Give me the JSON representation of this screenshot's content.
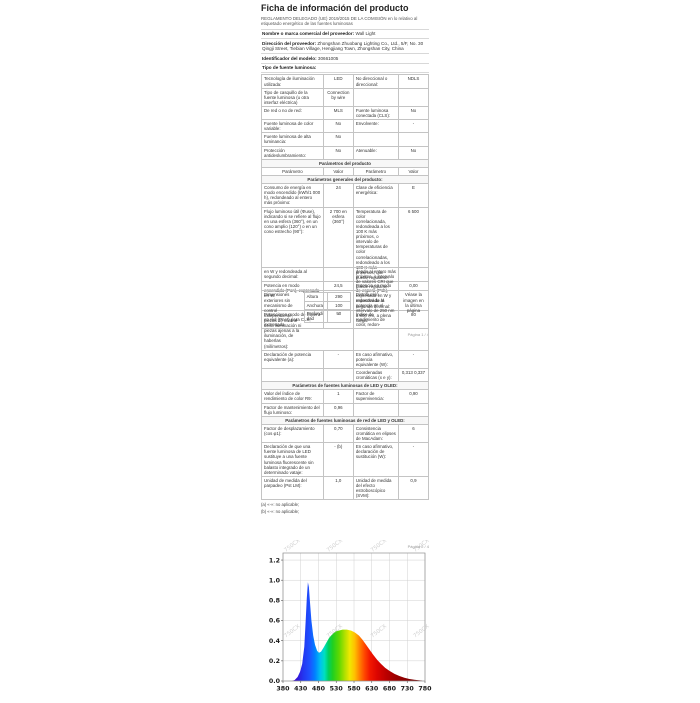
{
  "p1": {
    "title": "Ficha de información del producto",
    "regulation": "REGLAMENTO DELEGADO (UE) 2019/2015 DE LA COMISIÓN en lo relativo al etiquetado energético de las fuentes luminosas",
    "labels": {
      "supplier": "Nombre o marca comercial del proveedor:",
      "address": "Dirección del proveedor:",
      "model": "Identificador del modelo:",
      "type": "Tipo de fuente luminosa:"
    },
    "values": {
      "supplier": "Wall Light",
      "address": "Zhongshan Zhuobang Lighting Co., Ltd., 5/F, No. 30 Qingji Street, Tiebian Village, Hengjiang Town, Zhongshan City, China",
      "model": "30661005"
    },
    "info": [
      [
        "Tecnología de iluminación utilizada:",
        "LED",
        "No direccional o direccional:",
        "NDLS"
      ],
      [
        "Tipo de casquillo de la fuente luminosa (u otra interfaz eléctrica)",
        "Connection by wire",
        "",
        ""
      ],
      [
        "De red o no de red:",
        "MLS",
        "Fuente luminosa conectada (CLS):",
        "No"
      ],
      [
        "Fuente luminosa de color variable:",
        "No",
        "Envolvente:",
        "-"
      ],
      [
        "Fuente luminosa de alta luminancia:",
        "No",
        "",
        ""
      ],
      [
        "Protección antideslumbramiento:",
        "No",
        "Atenuable:",
        "No"
      ]
    ],
    "sec_product": "Parámetros del producto",
    "param_hdr": [
      "Parámetro",
      "Valor",
      "Parámetro",
      "Valor"
    ],
    "sec_general": "Parámetros generales del producto:",
    "general": [
      [
        "Consumo de energía en modo encendido (kWh/1 000 h), redondeado al entero más próximo:",
        "24",
        "Clase de eficiencia energética:",
        "E"
      ],
      [
        "Flujo luminoso útil (Φuse), indicando si se refiere al flujo en una esfera (360°), en un cono amplio (120°) o en un cono estrecho (90°):",
        "2 700 en esfera (360°)",
        "Temperatura de color correlacionada, redondeada a los 100 K más próximos, o intervalo de temperaturas de color correlacionadas, redondeado a los 100 K más próximos, que puede regularse:",
        "6 500"
      ],
      [
        "Potencia en modo encendido (Pon), expresada en W:",
        "24,5",
        "Potencia en modo de espera (Psb), expresada en W y redondeada al segundo decimal:",
        "0,00"
      ],
      [
        "Potencia en modo de espera en red (Pnet) para CLS, expresada",
        "-",
        "Índice de rendimiento de color, redon-",
        "80"
      ]
    ],
    "footer": "Página 1 / 4"
  },
  "p2": {
    "top": [
      [
        "en W y redondeada al segundo decimal:",
        "",
        "deado al entero más próximo, o intervalo de valores CRI que puede regularse:",
        ""
      ]
    ],
    "dims_label": "Dimensiones exteriores sin mecanismo de control independiente, piezas de control de la iluminación ni piezas ajenas a la iluminación, de haberlas (milímetros):",
    "dims": [
      [
        "Altura",
        "290"
      ],
      [
        "Anchura",
        "100"
      ],
      [
        "Profundidad",
        "90"
      ]
    ],
    "spd_label": "Distribución espectral de la potencia en el intervalo de 250 nm a 800 nm, a plena carga:",
    "spd_value": "Véase la imagen en la última página",
    "rows_a": [
      [
        "Declaración de potencia equivalente (a):",
        "-",
        "En caso afirmativo, potencia equivalente (W):",
        "-"
      ],
      [
        "",
        "",
        "Coordenadas cromáticas (x e y):",
        "0,313  0,337"
      ]
    ],
    "sec_led": "Parámetros de fuentes luminosas de LED y OLED:",
    "rows_led": [
      [
        "Valor del índice de rendimiento de color R9:",
        "1",
        "Factor de supervivencia:",
        "0,90"
      ],
      [
        "Factor de mantenimiento del flujo luminoso:",
        "0,96",
        "",
        ""
      ]
    ],
    "sec_mains": "Parámetros de fuentes luminosas de red de LED y OLED:",
    "rows_mains": [
      [
        "Factor de desplazamiento (cos φ1):",
        "0,70",
        "Consistencia cromática en elipses de MacAdam:",
        "6"
      ],
      [
        "Declaración de que una fuente luminosa de LED sustituye a una fuente luminosa fluorescente sin balasto integrado de un determinado vataje:",
        "- (b)",
        "En caso afirmativo, declaración de sustitución (W):",
        "-"
      ],
      [
        "Unidad de medida del parpadeo (Pst LM):",
        "1,0",
        "Unidad de medida del efecto estroboscópico (SVM):",
        "0,9"
      ]
    ],
    "footnotes": [
      "(a)  «-»: no aplicable;",
      "(b)  «-»: no aplicable;"
    ],
    "footer": "Página 2 / 4"
  },
  "chart_data": {
    "type": "area",
    "title": "",
    "xlabel": "",
    "ylabel": "",
    "xlim": [
      380,
      780
    ],
    "ylim": [
      0,
      1.2
    ],
    "grid": true,
    "legend": false,
    "x_ticks": [
      380,
      430,
      480,
      530,
      580,
      630,
      680,
      730,
      780
    ],
    "y_ticks": [
      0.0,
      0.2,
      0.4,
      0.6,
      0.8,
      1.0,
      1.2
    ],
    "series": [
      {
        "name": "relative spectral power (full load, 250-800 nm)",
        "points": [
          [
            405,
            0
          ],
          [
            413,
            0.01
          ],
          [
            421,
            0.04
          ],
          [
            428,
            0.09
          ],
          [
            434,
            0.17
          ],
          [
            440,
            0.34
          ],
          [
            444,
            0.6
          ],
          [
            447,
            0.82
          ],
          [
            450,
            0.98
          ],
          [
            453,
            0.93
          ],
          [
            456,
            0.78
          ],
          [
            460,
            0.6
          ],
          [
            465,
            0.45
          ],
          [
            470,
            0.36
          ],
          [
            476,
            0.3
          ],
          [
            481,
            0.28
          ],
          [
            487,
            0.29
          ],
          [
            494,
            0.33
          ],
          [
            502,
            0.38
          ],
          [
            510,
            0.43
          ],
          [
            518,
            0.46
          ],
          [
            527,
            0.49
          ],
          [
            537,
            0.5
          ],
          [
            548,
            0.51
          ],
          [
            560,
            0.51
          ],
          [
            572,
            0.5
          ],
          [
            583,
            0.48
          ],
          [
            594,
            0.45
          ],
          [
            604,
            0.41
          ],
          [
            614,
            0.36
          ],
          [
            624,
            0.31
          ],
          [
            634,
            0.26
          ],
          [
            645,
            0.21
          ],
          [
            656,
            0.17
          ],
          [
            668,
            0.13
          ],
          [
            680,
            0.1
          ],
          [
            694,
            0.07
          ],
          [
            708,
            0.05
          ],
          [
            722,
            0.033
          ],
          [
            736,
            0.02
          ],
          [
            750,
            0.012
          ],
          [
            762,
            0.007
          ],
          [
            772,
            0.004
          ]
        ]
      }
    ],
    "gradient_stops": [
      [
        380,
        "#4b0082"
      ],
      [
        415,
        "#3a0bd0"
      ],
      [
        437,
        "#2336f0"
      ],
      [
        455,
        "#1e50ff"
      ],
      [
        470,
        "#0080ff"
      ],
      [
        485,
        "#00c0f0"
      ],
      [
        497,
        "#00e0c0"
      ],
      [
        508,
        "#00d060"
      ],
      [
        520,
        "#20d020"
      ],
      [
        538,
        "#60d800"
      ],
      [
        554,
        "#b0e000"
      ],
      [
        568,
        "#f0e800"
      ],
      [
        582,
        "#ffc000"
      ],
      [
        596,
        "#ff8000"
      ],
      [
        610,
        "#ff4500"
      ],
      [
        625,
        "#f21800"
      ],
      [
        645,
        "#dc0500"
      ],
      [
        670,
        "#bc0000"
      ],
      [
        700,
        "#9a0000"
      ],
      [
        740,
        "#800000"
      ],
      [
        780,
        "#6b0000"
      ]
    ],
    "watermark": {
      "text": "750CX",
      "positions_frac": [
        [
          0.07,
          -0.05
        ],
        [
          0.37,
          -0.05
        ],
        [
          0.68,
          -0.05
        ],
        [
          0.98,
          -0.05
        ],
        [
          0.07,
          0.62
        ],
        [
          0.37,
          0.62
        ],
        [
          0.68,
          0.62
        ],
        [
          0.98,
          0.62
        ]
      ]
    },
    "colors": {
      "grid": "#d0d0d0",
      "frame": "#909090",
      "tick_text": "#1a1a1a"
    }
  }
}
